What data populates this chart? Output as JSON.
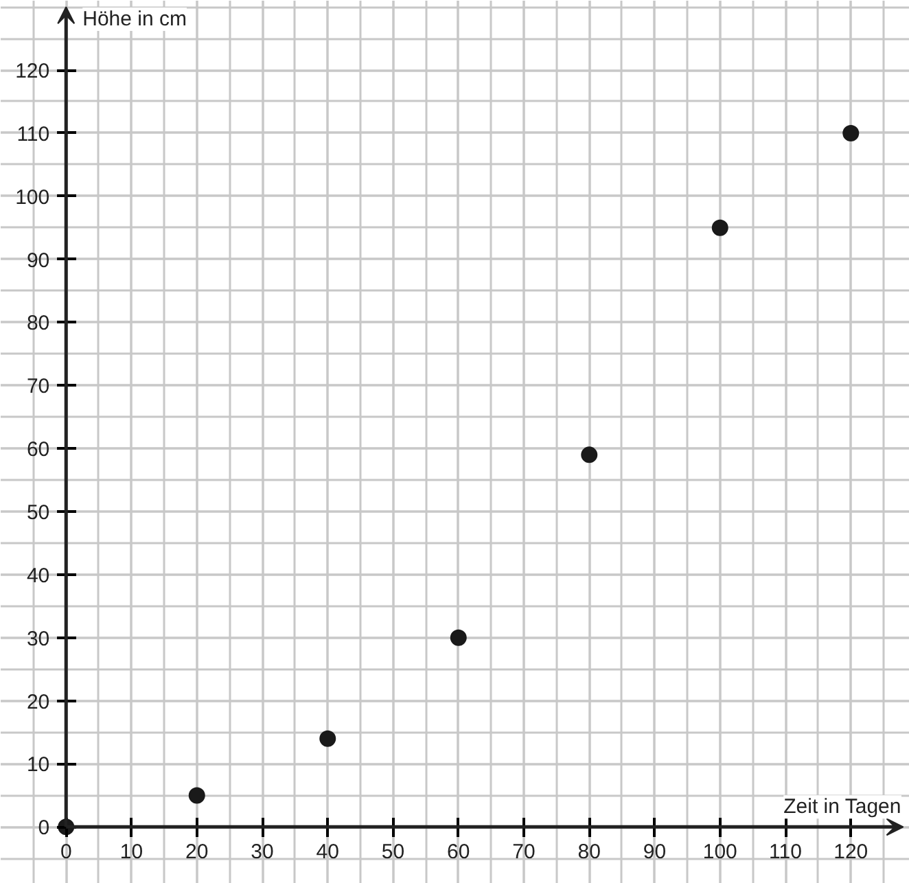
{
  "chart_data": {
    "type": "scatter",
    "xlabel": "Zeit in Tagen",
    "ylabel": "Höhe in cm",
    "x": [
      0,
      20,
      40,
      60,
      80,
      100,
      120
    ],
    "series": [
      {
        "color": "#1a1a1a",
        "values": [
          0,
          5,
          14,
          30,
          59,
          95,
          110
        ]
      }
    ],
    "xlim": [
      -10,
      129
    ],
    "ylim": [
      -9,
      131
    ],
    "xticks": [
      0,
      10,
      20,
      30,
      40,
      50,
      60,
      70,
      80,
      90,
      100,
      110,
      120
    ],
    "yticks": [
      0,
      10,
      20,
      30,
      40,
      50,
      60,
      70,
      80,
      90,
      100,
      110,
      120
    ],
    "grid": true,
    "marker": "circle"
  }
}
